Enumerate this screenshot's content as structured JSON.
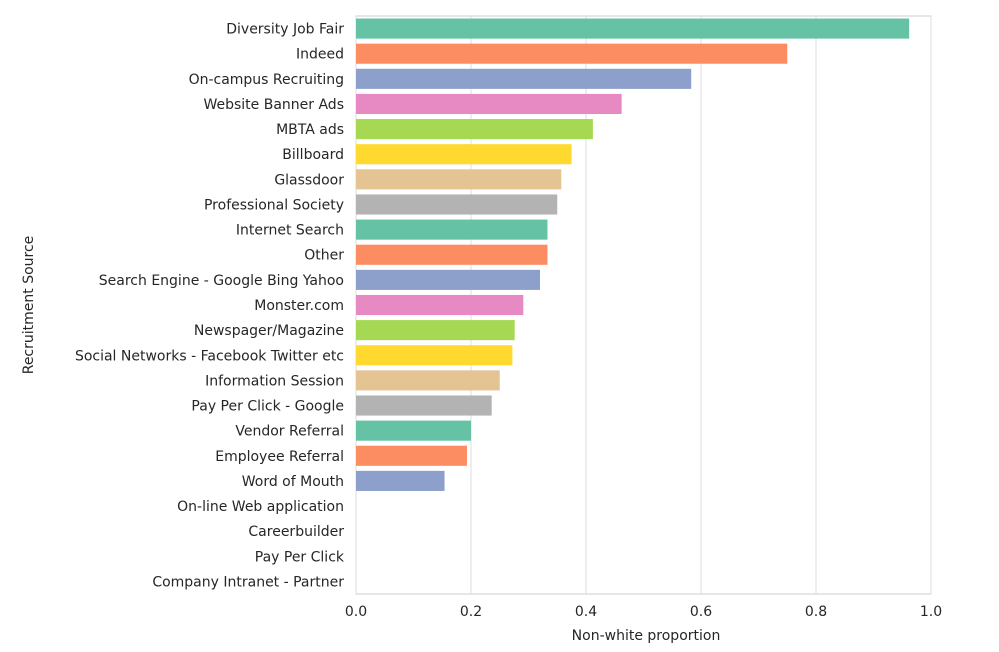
{
  "chart_data": {
    "type": "bar",
    "orientation": "horizontal",
    "title": "",
    "xlabel": "Non-white proportion",
    "ylabel": "Recruitment Source",
    "xlim": [
      0,
      1.0
    ],
    "xticks": [
      0.0,
      0.2,
      0.4,
      0.6,
      0.8,
      1.0
    ],
    "xtick_labels": [
      "0.0",
      "0.2",
      "0.4",
      "0.6",
      "0.8",
      "1.0"
    ],
    "grid": true,
    "palette": [
      "#66c2a5",
      "#fc8d62",
      "#8da0cb",
      "#e78ac3",
      "#a6d854",
      "#ffd92f",
      "#e5c494",
      "#b3b3b3"
    ],
    "categories": [
      "Diversity Job Fair",
      "Indeed",
      "On-campus Recruiting",
      "Website Banner Ads",
      "MBTA ads",
      "Billboard",
      "Glassdoor",
      "Professional Society",
      "Internet Search",
      "Other",
      "Search Engine - Google Bing Yahoo",
      "Monster.com",
      "Newspager/Magazine",
      "Social Networks - Facebook Twitter etc",
      "Information Session",
      "Pay Per Click - Google",
      "Vendor Referral",
      "Employee Referral",
      "Word of Mouth",
      "On-line Web application",
      "Careerbuilder",
      "Pay Per Click",
      "Company Intranet - Partner"
    ],
    "values": [
      0.962,
      0.75,
      0.583,
      0.462,
      0.412,
      0.375,
      0.357,
      0.35,
      0.333,
      0.333,
      0.32,
      0.291,
      0.276,
      0.272,
      0.25,
      0.236,
      0.2,
      0.193,
      0.154,
      0.0,
      0.0,
      0.0,
      0.0
    ]
  }
}
